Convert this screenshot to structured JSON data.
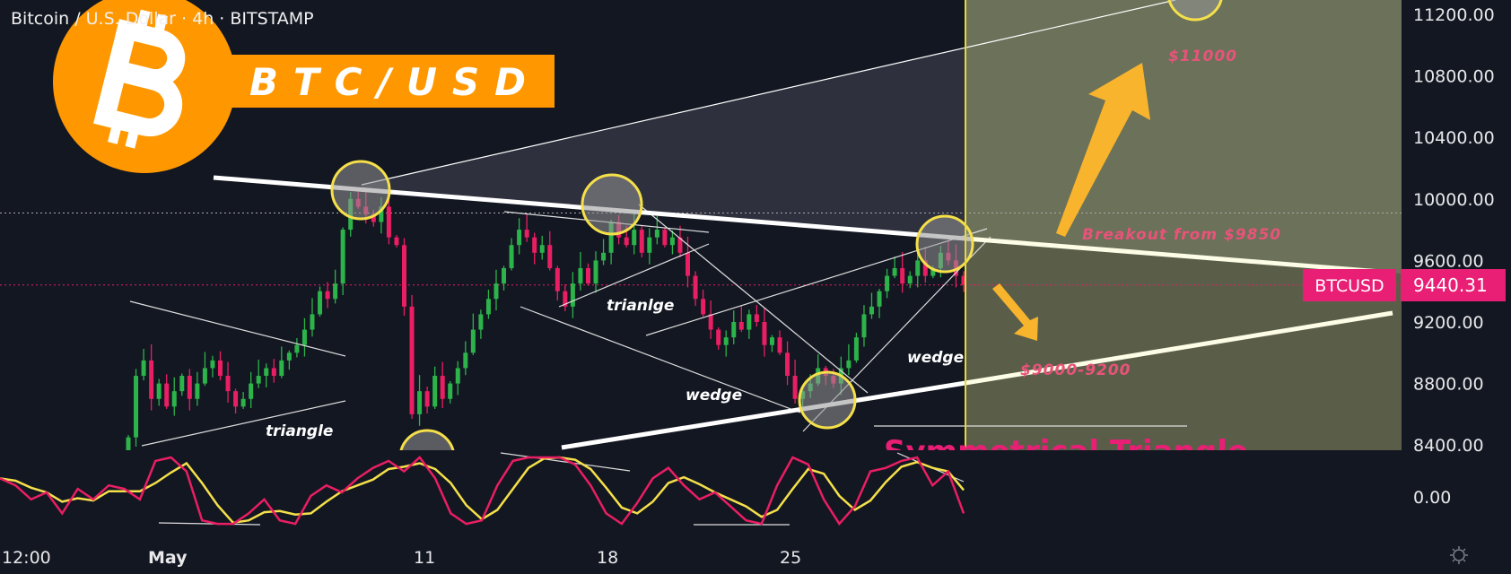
{
  "header": {
    "symbol_title": "Bitcoin / U.S. Dollar · 4h · BITSTAMP"
  },
  "logo": {
    "text": "BTC/USD",
    "color": "#ff9800"
  },
  "price_axis": {
    "labels": [
      "11200.00",
      "10800.00",
      "10400.00",
      "10000.00",
      "9600.00",
      "9200.00",
      "8800.00",
      "8400.00"
    ]
  },
  "oscillator_axis": {
    "label": "0.00"
  },
  "time_axis": {
    "labels": [
      "12:00",
      "May",
      "11",
      "18",
      "25"
    ]
  },
  "last_price": {
    "symbol": "BTCUSD",
    "value": "9440.31",
    "color": "#e91e75"
  },
  "annotations": {
    "triangle_1": "triangle",
    "triangle_2": "trianlge",
    "wedge_1": "wedge",
    "wedge_2": "wedge",
    "target_up": "$11000",
    "breakout": "Breakout from $9850",
    "target_down": "$9000-9200",
    "pattern": "Symmetrical Triangle"
  },
  "colors": {
    "up": "#2cb34a",
    "down": "#e91e63",
    "circle": "#f5e04a",
    "arrow": "#f8b42c",
    "label": "#e8537a"
  },
  "chart_data": {
    "type": "candlestick",
    "title": "Bitcoin / U.S. Dollar · 4h · BITSTAMP",
    "ylim": [
      8400,
      11200
    ],
    "x_ticks": [
      "12:00",
      "May",
      "11",
      "18",
      "25"
    ],
    "closes": [
      8450,
      8850,
      8950,
      8700,
      8800,
      8650,
      8750,
      8850,
      8700,
      8800,
      8900,
      8950,
      8850,
      8750,
      8650,
      8700,
      8800,
      8850,
      8900,
      8850,
      8950,
      9000,
      9050,
      9150,
      9250,
      9400,
      9350,
      9450,
      9800,
      10000,
      9950,
      9900,
      9850,
      9950,
      9750,
      9700,
      9300,
      8600,
      8750,
      8650,
      8850,
      8700,
      8800,
      8900,
      9000,
      9150,
      9250,
      9350,
      9450,
      9550,
      9700,
      9800,
      9750,
      9650,
      9700,
      9550,
      9400,
      9300,
      9450,
      9550,
      9450,
      9600,
      9650,
      9850,
      9750,
      9700,
      9800,
      9650,
      9750,
      9800,
      9700,
      9750,
      9650,
      9500,
      9350,
      9250,
      9150,
      9050,
      9100,
      9200,
      9150,
      9250,
      9200,
      9050,
      9100,
      9000,
      8850,
      8700,
      8750,
      8800,
      8900,
      8850,
      8800,
      8900,
      8950,
      9100,
      9250,
      9300,
      9400,
      9500,
      9550,
      9450,
      9500,
      9600,
      9500,
      9550,
      9650,
      9600,
      9500,
      9440
    ],
    "last": 9440.31,
    "breakout_level": 9850,
    "oscillator": {
      "range": [
        0,
        100
      ],
      "k": [
        70,
        60,
        40,
        50,
        20,
        55,
        40,
        60,
        55,
        40,
        95,
        100,
        80,
        10,
        5,
        5,
        20,
        40,
        10,
        5,
        45,
        60,
        50,
        70,
        85,
        95,
        80,
        100,
        70,
        20,
        5,
        10,
        60,
        95,
        100,
        100,
        100,
        90,
        60,
        20,
        5,
        35,
        70,
        85,
        60,
        40,
        50,
        30,
        10,
        5,
        60,
        100,
        90,
        40,
        5,
        30,
        80,
        85,
        95,
        100,
        60,
        80,
        20
      ]
    }
  }
}
